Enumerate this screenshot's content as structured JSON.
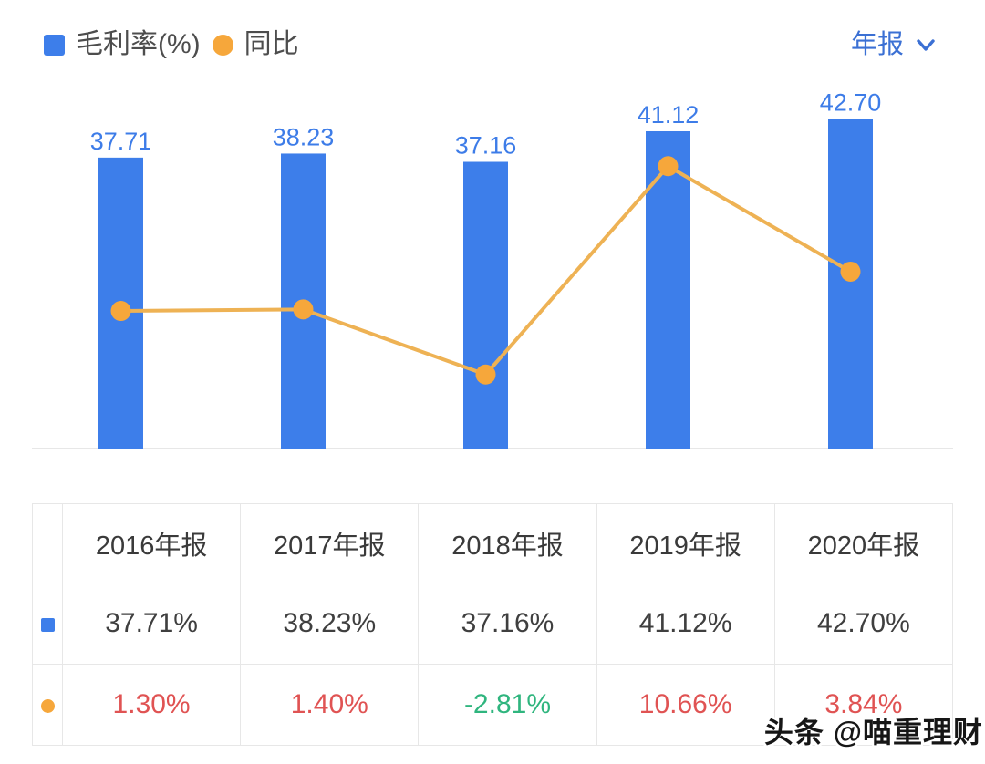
{
  "header": {
    "legend": [
      {
        "label": "毛利率(%)",
        "marker": "square",
        "color": "#3d7eea"
      },
      {
        "label": "同比",
        "marker": "circle",
        "color": "#f6a73b"
      }
    ],
    "period_selector": {
      "label": "年报",
      "color": "#3b70d4"
    }
  },
  "chart_data": {
    "type": "bar+line",
    "categories": [
      "2016年报",
      "2017年报",
      "2018年报",
      "2019年报",
      "2020年报"
    ],
    "series": [
      {
        "name": "毛利率(%)",
        "type": "bar",
        "values": [
          37.71,
          38.23,
          37.16,
          41.12,
          42.7
        ],
        "labels": [
          "37.71",
          "38.23",
          "37.16",
          "41.12",
          "42.70"
        ],
        "color": "#3d7eea",
        "label_color": "#3d7ce8"
      },
      {
        "name": "同比",
        "type": "line",
        "values": [
          1.3,
          1.4,
          -2.81,
          10.66,
          3.84
        ],
        "color": "#f6a73b",
        "line_color": "#eeb254"
      }
    ],
    "ylim_bar": [
      0,
      47.5
    ],
    "ylim_line": [
      -7.6,
      16.1
    ],
    "grid": false,
    "legend_position": "top-left",
    "baseline_color": "#e7e7e7"
  },
  "table": {
    "columns": [
      "2016年报",
      "2017年报",
      "2018年报",
      "2019年报",
      "2020年报"
    ],
    "rows": [
      {
        "series": "毛利率(%)",
        "marker": "square",
        "marker_color": "#3d7eea",
        "values": [
          "37.71%",
          "38.23%",
          "37.16%",
          "41.12%",
          "42.70%"
        ],
        "value_colors": [
          "#3f3f3f",
          "#3f3f3f",
          "#3f3f3f",
          "#3f3f3f",
          "#3f3f3f"
        ]
      },
      {
        "series": "同比",
        "marker": "circle",
        "marker_color": "#f6a73b",
        "values": [
          "1.30%",
          "1.40%",
          "-2.81%",
          "10.66%",
          "3.84%"
        ],
        "value_colors": [
          "#e05353",
          "#e05353",
          "#2fb57e",
          "#e05353",
          "#e05353"
        ]
      }
    ]
  },
  "watermark": {
    "text": "头条 @喵重理财"
  }
}
